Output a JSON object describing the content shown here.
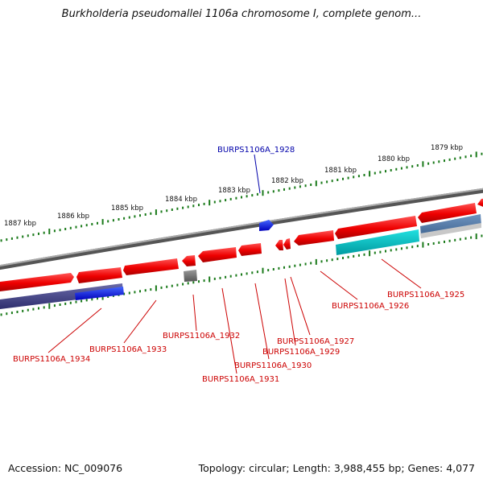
{
  "title": "Burkholderia pseudomallei 1106a chromosome I, complete genom...",
  "footer": {
    "accession": "Accession: NC_009076",
    "summary": "Topology: circular; Length: 3,988,455 bp; Genes: 4,077"
  },
  "colors": {
    "forward_gene": "#ff0000",
    "highlight_gene": "#0000ee",
    "tick": "#1a7a1a",
    "backbone": "#888888",
    "label_red": "#cc0000",
    "label_blue": "#0000aa"
  },
  "ruler": {
    "ticks": [
      {
        "label": "1887 kbp"
      },
      {
        "label": "1886 kbp"
      },
      {
        "label": "1885 kbp"
      },
      {
        "label": "1884 kbp"
      },
      {
        "label": "1883 kbp"
      },
      {
        "label": "1882 kbp"
      },
      {
        "label": "1881 kbp"
      },
      {
        "label": "1880 kbp"
      },
      {
        "label": "1879 kbp"
      }
    ]
  },
  "genes": [
    {
      "label": "BURPS1106A_1928",
      "color": "blue"
    },
    {
      "label": "BURPS1106A_1925",
      "color": "red"
    },
    {
      "label": "BURPS1106A_1926",
      "color": "red"
    },
    {
      "label": "BURPS1106A_1927",
      "color": "red"
    },
    {
      "label": "BURPS1106A_1929",
      "color": "red"
    },
    {
      "label": "BURPS1106A_1930",
      "color": "red"
    },
    {
      "label": "BURPS1106A_1931",
      "color": "red"
    },
    {
      "label": "BURPS1106A_1932",
      "color": "red"
    },
    {
      "label": "BURPS1106A_1933",
      "color": "red"
    },
    {
      "label": "BURPS1106A_1934",
      "color": "red"
    }
  ]
}
